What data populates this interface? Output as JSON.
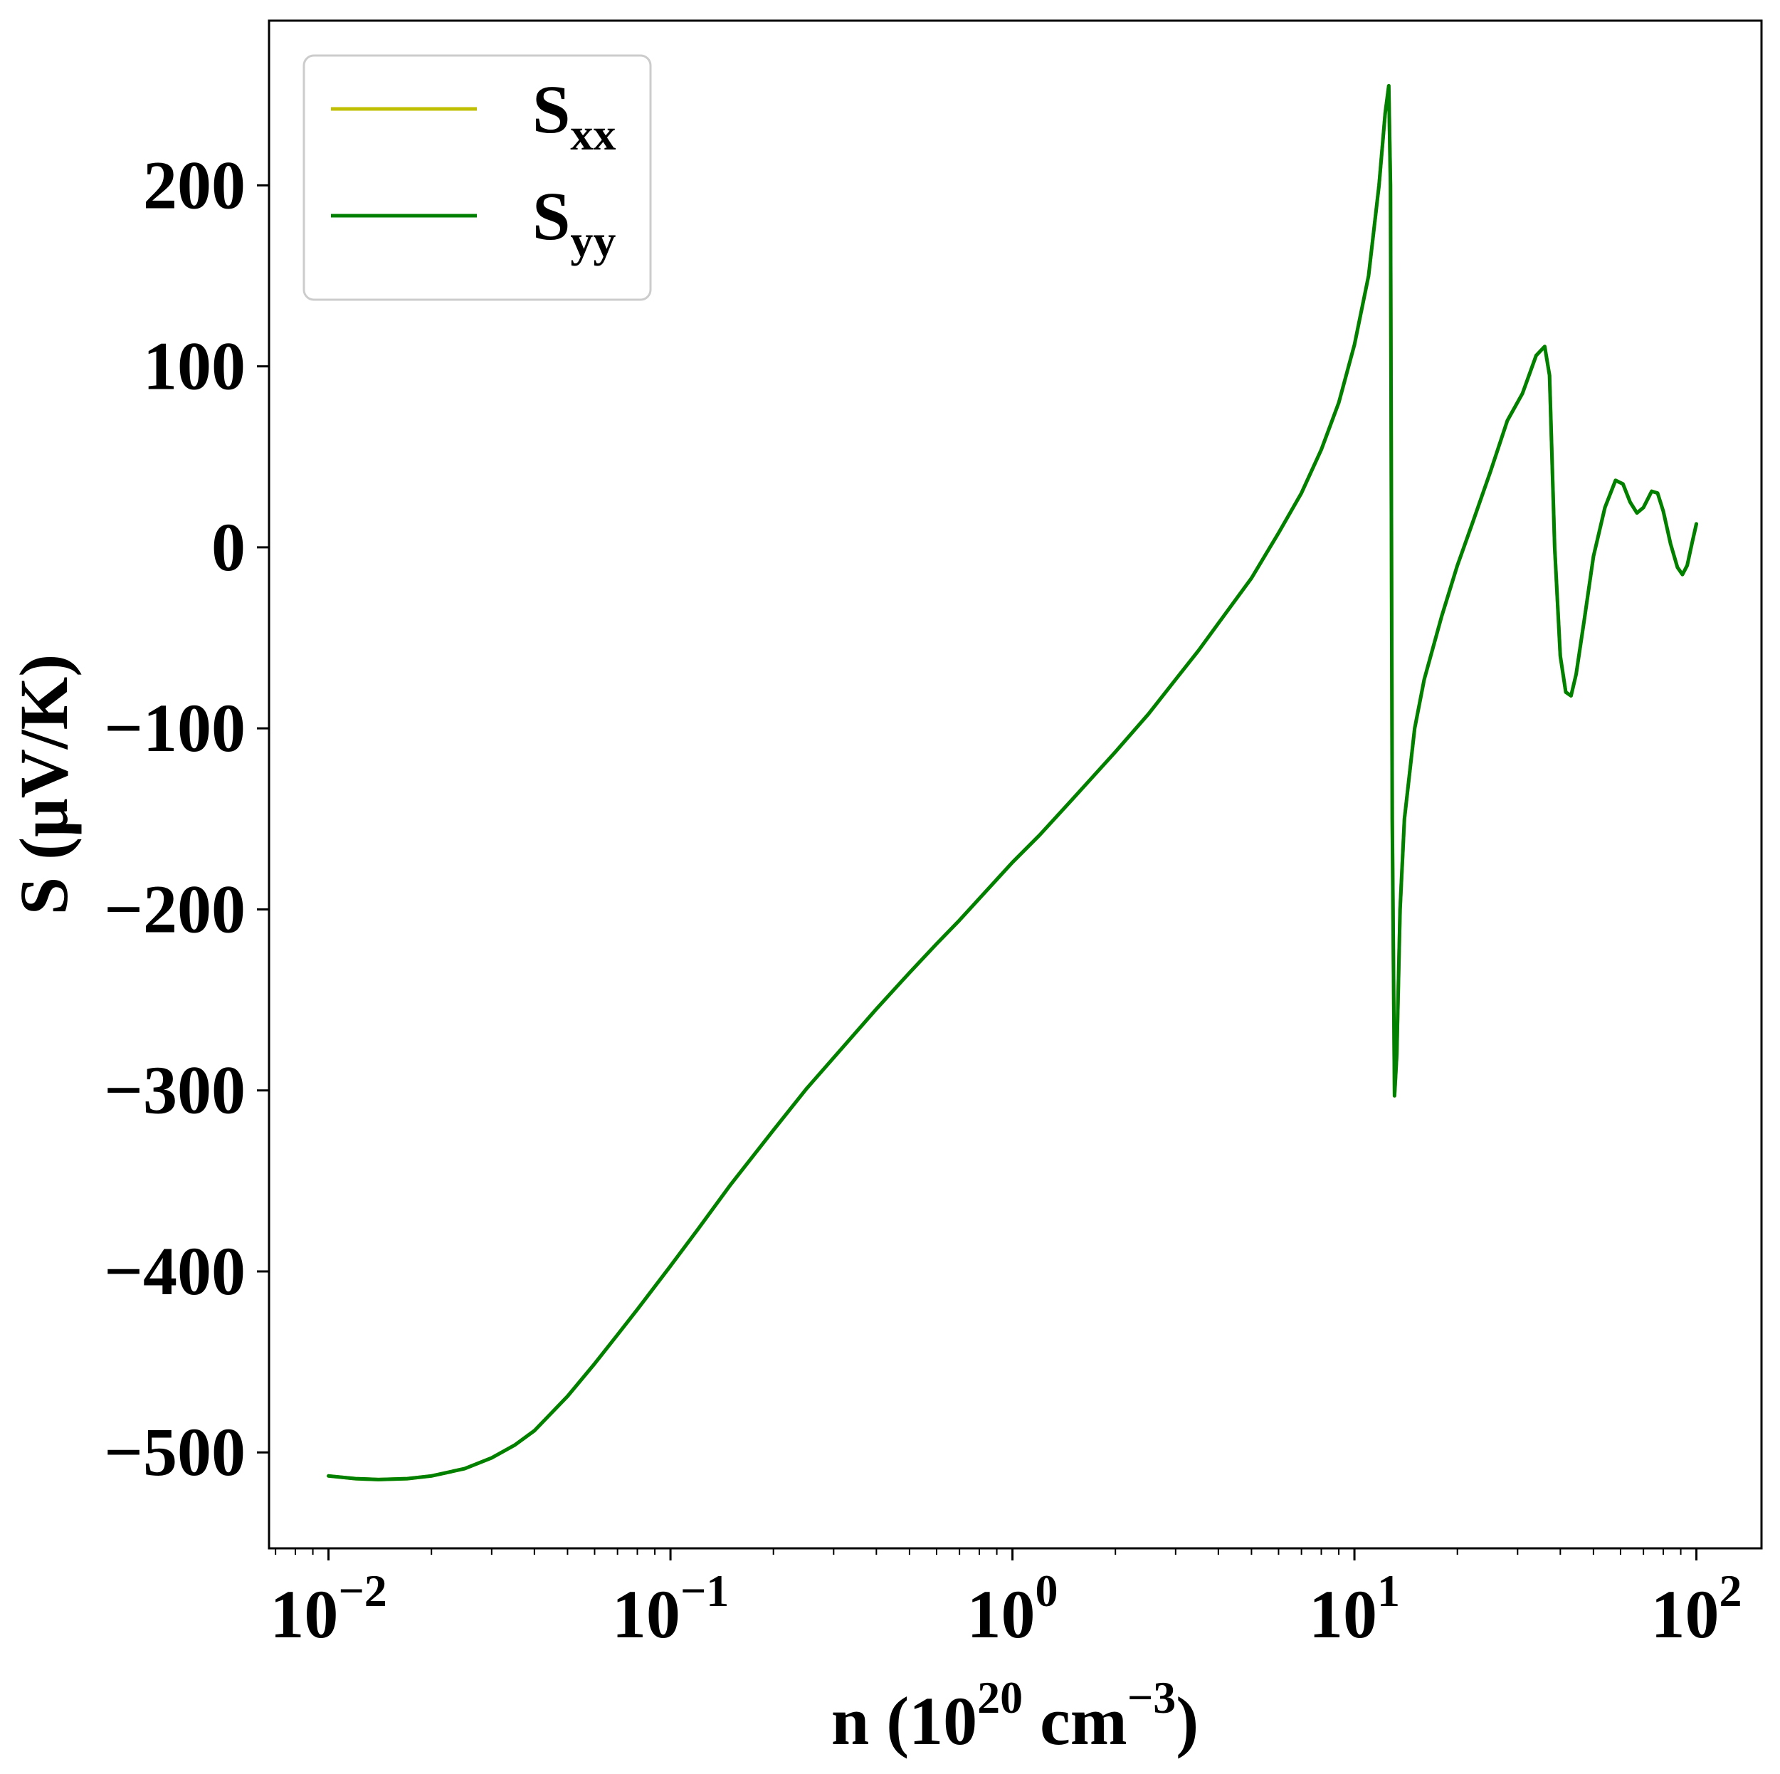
{
  "chart_data": {
    "type": "line",
    "xlabel_parts": {
      "prefix": "n (10",
      "sup1": "20",
      "middle": " cm",
      "sup2": "−3",
      "suffix": ")"
    },
    "ylabel": "S (μV/K)",
    "x_scale": "log",
    "xlim": [
      0.0067,
      155
    ],
    "ylim": [
      -553,
      291
    ],
    "x_ticks": [
      {
        "value": 0.01,
        "base": "10",
        "exp": "−2"
      },
      {
        "value": 0.1,
        "base": "10",
        "exp": "−1"
      },
      {
        "value": 1,
        "base": "10",
        "exp": "0"
      },
      {
        "value": 10,
        "base": "10",
        "exp": "1"
      },
      {
        "value": 100,
        "base": "10",
        "exp": "2"
      }
    ],
    "y_ticks": [
      {
        "value": 200,
        "label": "200"
      },
      {
        "value": 100,
        "label": "100"
      },
      {
        "value": 0,
        "label": "0"
      },
      {
        "value": -100,
        "label": "−100"
      },
      {
        "value": -200,
        "label": "−200"
      },
      {
        "value": -300,
        "label": "−300"
      },
      {
        "value": -400,
        "label": "−400"
      },
      {
        "value": -500,
        "label": "−500"
      }
    ],
    "grid": false,
    "legend_position": "top-left",
    "series": [
      {
        "base": "S",
        "sub": "xx",
        "color": "#bfbf00",
        "x": [
          0.01,
          0.012,
          0.014,
          0.017,
          0.02,
          0.025,
          0.03,
          0.035,
          0.04,
          0.05,
          0.06,
          0.07,
          0.08,
          0.1,
          0.12,
          0.15,
          0.2,
          0.25,
          0.3,
          0.4,
          0.5,
          0.6,
          0.7,
          0.8,
          1.0,
          1.2,
          1.5,
          2.0,
          2.5,
          3.0,
          3.5,
          4.0,
          5.0,
          6.0,
          7.0,
          8.0,
          9.0,
          10.0,
          11.0,
          11.8,
          12.3,
          12.6,
          12.75,
          12.9,
          13.1,
          13.3,
          13.6,
          14.0,
          15.0,
          16.0,
          18.0,
          20.0,
          22.0,
          25.0,
          28.0,
          31.0,
          34.0,
          36.0,
          37.2,
          38.5,
          40.0,
          41.5,
          43.0,
          44.5,
          47.0,
          50.0,
          54.0,
          58.0,
          61.0,
          64.0,
          67.0,
          70.0,
          74.0,
          77.0,
          80.0,
          84.0,
          88.0,
          91.0,
          94.0,
          97.0,
          100.0
        ],
        "values": [
          -513,
          -514.5,
          -515,
          -514.5,
          -513,
          -509,
          -503,
          -496,
          -488,
          -469,
          -451,
          -435,
          -421,
          -397,
          -377,
          -352,
          -322,
          -299,
          -282,
          -255,
          -235,
          -219,
          -206,
          -194,
          -174,
          -159,
          -139,
          -113,
          -92,
          -73,
          -57,
          -42,
          -17,
          8,
          30,
          54,
          80,
          112,
          150,
          200,
          240,
          255,
          200,
          -150,
          -303,
          -280,
          -200,
          -150,
          -100,
          -73,
          -38,
          -10,
          12,
          42,
          70,
          85,
          106,
          111,
          95,
          0,
          -60,
          -80,
          -82,
          -70,
          -40,
          -5,
          22,
          37,
          35,
          25,
          19,
          22,
          31,
          30,
          20,
          2,
          -11,
          -15,
          -10,
          2,
          13
        ]
      },
      {
        "base": "S",
        "sub": "yy",
        "color": "#008000",
        "x": [
          0.01,
          0.012,
          0.014,
          0.017,
          0.02,
          0.025,
          0.03,
          0.035,
          0.04,
          0.05,
          0.06,
          0.07,
          0.08,
          0.1,
          0.12,
          0.15,
          0.2,
          0.25,
          0.3,
          0.4,
          0.5,
          0.6,
          0.7,
          0.8,
          1.0,
          1.2,
          1.5,
          2.0,
          2.5,
          3.0,
          3.5,
          4.0,
          5.0,
          6.0,
          7.0,
          8.0,
          9.0,
          10.0,
          11.0,
          11.8,
          12.3,
          12.6,
          12.75,
          12.9,
          13.1,
          13.3,
          13.6,
          14.0,
          15.0,
          16.0,
          18.0,
          20.0,
          22.0,
          25.0,
          28.0,
          31.0,
          34.0,
          36.0,
          37.2,
          38.5,
          40.0,
          41.5,
          43.0,
          44.5,
          47.0,
          50.0,
          54.0,
          58.0,
          61.0,
          64.0,
          67.0,
          70.0,
          74.0,
          77.0,
          80.0,
          84.0,
          88.0,
          91.0,
          94.0,
          97.0,
          100.0
        ],
        "values": [
          -513,
          -514.5,
          -515,
          -514.5,
          -513,
          -509,
          -503,
          -496,
          -488,
          -469,
          -451,
          -435,
          -421,
          -397,
          -377,
          -352,
          -322,
          -299,
          -282,
          -255,
          -235,
          -219,
          -206,
          -194,
          -174,
          -159,
          -139,
          -113,
          -92,
          -73,
          -57,
          -42,
          -17,
          8,
          30,
          54,
          80,
          112,
          150,
          200,
          240,
          255,
          200,
          -150,
          -303,
          -280,
          -200,
          -150,
          -100,
          -73,
          -38,
          -10,
          12,
          42,
          70,
          85,
          106,
          111,
          95,
          0,
          -60,
          -80,
          -82,
          -70,
          -40,
          -5,
          22,
          37,
          35,
          25,
          19,
          22,
          31,
          30,
          20,
          2,
          -11,
          -15,
          -10,
          2,
          13
        ]
      }
    ]
  }
}
